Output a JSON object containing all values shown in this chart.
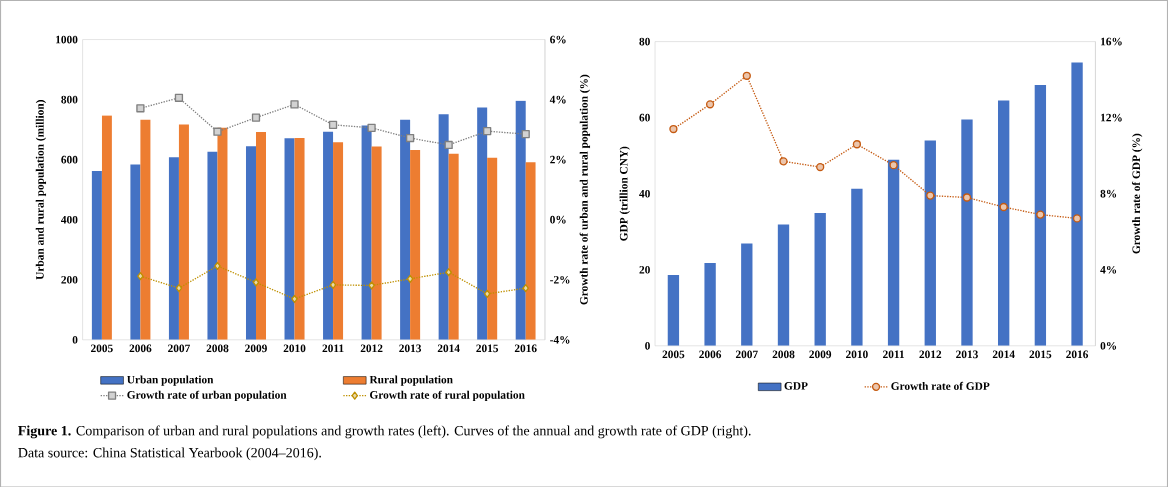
{
  "chart_data": [
    {
      "type": "bar",
      "categories": [
        "2005",
        "2006",
        "2007",
        "2008",
        "2009",
        "2010",
        "2011",
        "2012",
        "2013",
        "2014",
        "2015",
        "2016"
      ],
      "ylabel": "Urban and rural population (million)",
      "y2label": "Growth rate of urban and rural population (%)",
      "ylim": [
        0,
        1000
      ],
      "yticks": [
        0,
        200,
        400,
        600,
        800,
        1000
      ],
      "y2lim": [
        -4,
        6
      ],
      "y2ticks": [
        {
          "value": -4,
          "label": "-4%"
        },
        {
          "value": -2,
          "label": "-2%"
        },
        {
          "value": 0,
          "label": "0%"
        },
        {
          "value": 2,
          "label": "2%"
        },
        {
          "value": 4,
          "label": "4%"
        },
        {
          "value": 6,
          "label": "6%"
        }
      ],
      "legend": "bottom",
      "series": [
        {
          "name": "Urban population",
          "color": "#4472c4",
          "values": [
            562,
            584,
            608,
            626,
            645,
            671,
            693,
            714,
            733,
            751,
            774,
            796
          ]
        },
        {
          "name": "Rural population",
          "color": "#ed7d31",
          "values": [
            747,
            733,
            717,
            706,
            692,
            672,
            658,
            644,
            632,
            620,
            606,
            591
          ]
        },
        {
          "name": "Growth rate of urban population",
          "type": "line",
          "axis": "y2",
          "color": "#7f7f7f",
          "marker": "square",
          "line_style": "dotted",
          "values": [
            null,
            3.71,
            4.06,
            2.93,
            3.4,
            3.84,
            3.16,
            3.06,
            2.72,
            2.49,
            2.95,
            2.85
          ]
        },
        {
          "name": "Growth rate of rural population",
          "type": "line",
          "axis": "y2",
          "color": "#bf9000",
          "marker": "diamond",
          "line_style": "dotted",
          "values": [
            null,
            -1.88,
            -2.28,
            -1.54,
            -2.09,
            -2.64,
            -2.17,
            -2.19,
            -1.97,
            -1.75,
            -2.47,
            -2.28
          ]
        }
      ],
      "annotations": [
        "**Figure 1.** Comparison of urban and rural populations and growth rates (left). Curves of the annual and growth rate of GDP (right).",
        "Data source: China Statistical Yearbook (2004–2016)."
      ]
    },
    {
      "type": "bar",
      "categories": [
        "2005",
        "2006",
        "2007",
        "2008",
        "2009",
        "2010",
        "2011",
        "2012",
        "2013",
        "2014",
        "2015",
        "2016"
      ],
      "ylabel": "GDP (trillion CNY)",
      "y2label": "Growth rate of GDP (%)",
      "ylim": [
        0,
        80
      ],
      "yticks": [
        0,
        20,
        40,
        60,
        80
      ],
      "y2lim": [
        0,
        16
      ],
      "y2ticks": [
        {
          "value": 0,
          "label": "0%"
        },
        {
          "value": 4,
          "label": "4%"
        },
        {
          "value": 8,
          "label": "8%"
        },
        {
          "value": 12,
          "label": "12%"
        },
        {
          "value": 16,
          "label": "16%"
        }
      ],
      "legend": "bottom",
      "series": [
        {
          "name": "GDP",
          "color": "#4472c4",
          "values": [
            18.6,
            21.8,
            26.9,
            31.9,
            34.9,
            41.3,
            48.9,
            54.0,
            59.5,
            64.5,
            68.6,
            74.5
          ]
        },
        {
          "name": "Growth rate of GDP",
          "type": "line",
          "axis": "y2",
          "color": "#c55a11",
          "marker": "circle",
          "line_style": "dotted",
          "values": [
            11.4,
            12.7,
            14.2,
            9.7,
            9.4,
            10.6,
            9.5,
            7.9,
            7.8,
            7.3,
            6.9,
            6.7
          ]
        }
      ]
    }
  ]
}
